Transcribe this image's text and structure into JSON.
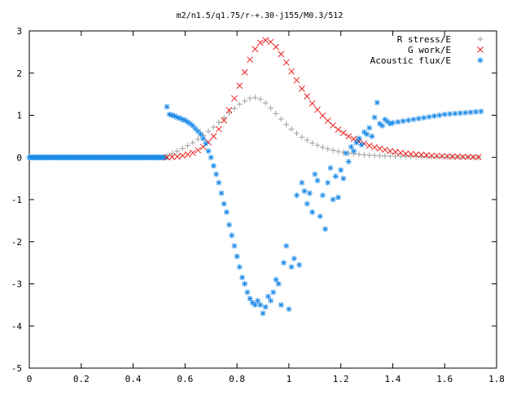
{
  "chart_data": {
    "type": "scatter",
    "title": "m2/n1.5/q1.75/r-+.30-j155/M0.3/512",
    "xlabel": "",
    "ylabel": "",
    "xlim": [
      0,
      1.8
    ],
    "ylim": [
      -5,
      3
    ],
    "x_ticks": [
      0,
      0.2,
      0.4,
      0.6,
      0.8,
      1,
      1.2,
      1.4,
      1.6,
      1.8
    ],
    "y_ticks": [
      3,
      2,
      1,
      0,
      -1,
      -2,
      -3,
      -4,
      -5
    ],
    "grid": false,
    "legend_position": "top-right",
    "series": [
      {
        "name": "R stress/E",
        "marker": "+",
        "color": "#a0a0a0",
        "x": [
          0.53,
          0.55,
          0.57,
          0.59,
          0.61,
          0.63,
          0.65,
          0.67,
          0.69,
          0.71,
          0.73,
          0.75,
          0.77,
          0.79,
          0.81,
          0.83,
          0.85,
          0.87,
          0.89,
          0.91,
          0.93,
          0.95,
          0.97,
          0.99,
          1.01,
          1.03,
          1.05,
          1.07,
          1.09,
          1.11,
          1.13,
          1.15,
          1.17,
          1.19,
          1.21,
          1.23,
          1.25,
          1.27,
          1.29,
          1.31,
          1.33,
          1.35,
          1.37,
          1.39,
          1.41,
          1.43,
          1.45,
          1.47,
          1.49,
          1.51,
          1.53,
          1.55,
          1.57,
          1.59,
          1.61,
          1.63,
          1.65,
          1.67,
          1.69,
          1.71,
          1.73
        ],
        "y": [
          0.04,
          0.09,
          0.15,
          0.21,
          0.28,
          0.35,
          0.43,
          0.52,
          0.62,
          0.72,
          0.83,
          0.94,
          1.05,
          1.16,
          1.26,
          1.34,
          1.4,
          1.42,
          1.38,
          1.29,
          1.17,
          1.04,
          0.91,
          0.78,
          0.67,
          0.57,
          0.48,
          0.41,
          0.34,
          0.29,
          0.24,
          0.2,
          0.17,
          0.14,
          0.12,
          0.1,
          0.085,
          0.072,
          0.062,
          0.053,
          0.046,
          0.04,
          0.035,
          0.031,
          0.027,
          0.024,
          0.021,
          0.019,
          0.017,
          0.015,
          0.013,
          0.012,
          0.011,
          0.01,
          0.009,
          0.008,
          0.007,
          0.006,
          0.005,
          0.005,
          0.004
        ]
      },
      {
        "name": "G work/E",
        "marker": "x",
        "color": "#e8201c",
        "x": [
          0.53,
          0.55,
          0.57,
          0.59,
          0.61,
          0.63,
          0.65,
          0.67,
          0.69,
          0.71,
          0.73,
          0.75,
          0.77,
          0.79,
          0.81,
          0.83,
          0.85,
          0.87,
          0.89,
          0.91,
          0.93,
          0.95,
          0.97,
          0.99,
          1.01,
          1.03,
          1.05,
          1.07,
          1.09,
          1.11,
          1.13,
          1.15,
          1.17,
          1.19,
          1.21,
          1.23,
          1.25,
          1.27,
          1.29,
          1.31,
          1.33,
          1.35,
          1.37,
          1.39,
          1.41,
          1.43,
          1.45,
          1.47,
          1.49,
          1.51,
          1.53,
          1.55,
          1.57,
          1.59,
          1.61,
          1.63,
          1.65,
          1.67,
          1.69,
          1.71,
          1.73
        ],
        "y": [
          0.0,
          0.01,
          0.02,
          0.04,
          0.07,
          0.11,
          0.17,
          0.25,
          0.36,
          0.5,
          0.67,
          0.88,
          1.12,
          1.4,
          1.7,
          2.02,
          2.32,
          2.57,
          2.72,
          2.78,
          2.74,
          2.62,
          2.45,
          2.25,
          2.04,
          1.83,
          1.63,
          1.45,
          1.28,
          1.13,
          0.99,
          0.87,
          0.76,
          0.66,
          0.58,
          0.5,
          0.44,
          0.38,
          0.33,
          0.28,
          0.24,
          0.21,
          0.18,
          0.15,
          0.13,
          0.11,
          0.09,
          0.08,
          0.07,
          0.06,
          0.05,
          0.04,
          0.035,
          0.03,
          0.025,
          0.02,
          0.017,
          0.014,
          0.012,
          0.01,
          0.008
        ]
      },
      {
        "name": "Acoustic flux/E",
        "marker": "*",
        "color": "#1c8be8",
        "x": [
          0.53,
          0.54,
          0.55,
          0.56,
          0.57,
          0.58,
          0.59,
          0.6,
          0.61,
          0.62,
          0.63,
          0.64,
          0.65,
          0.66,
          0.67,
          0.68,
          0.69,
          0.7,
          0.71,
          0.72,
          0.73,
          0.74,
          0.75,
          0.76,
          0.77,
          0.78,
          0.79,
          0.8,
          0.81,
          0.82,
          0.83,
          0.84,
          0.85,
          0.86,
          0.87,
          0.88,
          0.89,
          0.9,
          0.91,
          0.92,
          0.93,
          0.94,
          0.95,
          0.96,
          0.97,
          0.98,
          0.99,
          1.0,
          1.01,
          1.02,
          1.03,
          1.04,
          1.05,
          1.06,
          1.07,
          1.08,
          1.09,
          1.1,
          1.11,
          1.12,
          1.13,
          1.14,
          1.15,
          1.16,
          1.17,
          1.18,
          1.19,
          1.2,
          1.21,
          1.22,
          1.23,
          1.24,
          1.25,
          1.26,
          1.27,
          1.28,
          1.29,
          1.3,
          1.31,
          1.32,
          1.33,
          1.34,
          1.35,
          1.36,
          1.37,
          1.38,
          1.39,
          1.4,
          1.42,
          1.44,
          1.46,
          1.48,
          1.5,
          1.52,
          1.54,
          1.56,
          1.58,
          1.6,
          1.62,
          1.64,
          1.66,
          1.68,
          1.7,
          1.72,
          1.74
        ],
        "y": [
          1.2,
          1.02,
          1.0,
          0.98,
          0.95,
          0.93,
          0.9,
          0.88,
          0.84,
          0.8,
          0.75,
          0.68,
          0.62,
          0.55,
          0.45,
          0.33,
          0.15,
          0.0,
          -0.2,
          -0.4,
          -0.6,
          -0.85,
          -1.1,
          -1.3,
          -1.6,
          -1.85,
          -2.1,
          -2.35,
          -2.6,
          -2.85,
          -3.0,
          -3.2,
          -3.35,
          -3.45,
          -3.5,
          -3.4,
          -3.5,
          -3.7,
          -3.55,
          -3.3,
          -3.4,
          -3.2,
          -2.9,
          -3.0,
          -3.5,
          -2.5,
          -2.1,
          -3.6,
          -2.6,
          -2.4,
          -0.9,
          -2.55,
          -0.6,
          -0.8,
          -1.1,
          -0.85,
          -1.3,
          -0.4,
          -0.55,
          -1.4,
          -0.9,
          -1.7,
          -0.6,
          -0.25,
          -1.0,
          -0.45,
          -0.95,
          -0.3,
          -0.5,
          0.1,
          -0.1,
          0.25,
          0.15,
          0.35,
          0.45,
          0.3,
          0.6,
          0.55,
          0.7,
          0.5,
          0.95,
          1.3,
          0.8,
          0.75,
          0.9,
          0.85,
          0.8,
          0.82,
          0.84,
          0.86,
          0.88,
          0.9,
          0.92,
          0.94,
          0.96,
          0.98,
          1.0,
          1.02,
          1.03,
          1.04,
          1.05,
          1.06,
          1.07,
          1.08,
          1.09
        ]
      }
    ]
  }
}
